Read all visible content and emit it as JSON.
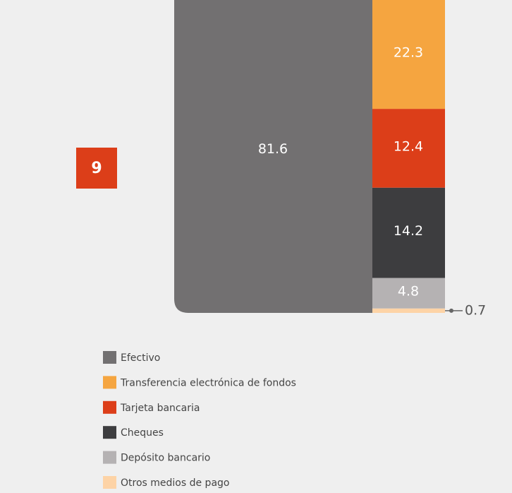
{
  "badge": "9",
  "chart_data": {
    "type": "bar",
    "series": [
      {
        "name": "Efectivo",
        "color": "#727071",
        "values": [
          81.6
        ]
      },
      {
        "name": "Transferencia electrónica de fondos",
        "color": "#f5a540",
        "values": [
          22.3
        ]
      },
      {
        "name": "Tarjeta bancaria",
        "color": "#dc3e19",
        "values": [
          12.4
        ]
      },
      {
        "name": "Cheques",
        "color": "#3d3d3f",
        "values": [
          14.2
        ]
      },
      {
        "name": "Depósito bancario",
        "color": "#b5b2b3",
        "values": [
          4.8
        ]
      },
      {
        "name": "Otros medios de pago",
        "color": "#fdd3a6",
        "values": [
          0.7
        ]
      }
    ]
  }
}
